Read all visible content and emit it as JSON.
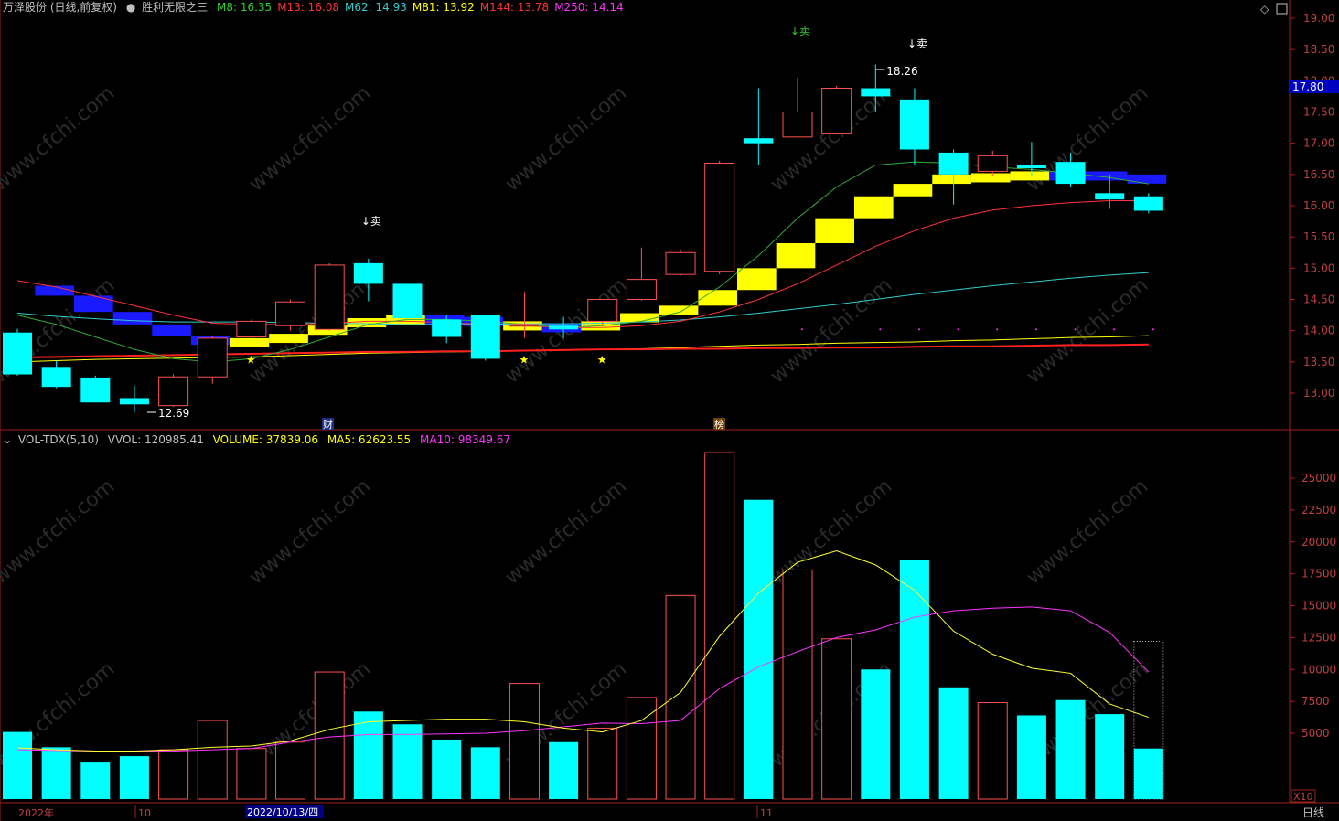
{
  "header": {
    "stock": "万泽股份 (日线,前复权)",
    "indicator": "胜利无限之三",
    "ma": [
      {
        "label": "M8: 16.35",
        "color": "#33cc33"
      },
      {
        "label": "M13: 16.08",
        "color": "#ff3333"
      },
      {
        "label": "M62: 14.93",
        "color": "#33cccc"
      },
      {
        "label": "M81: 13.92",
        "color": "#ffff00"
      },
      {
        "label": "M144: 13.78",
        "color": "#ff3333"
      },
      {
        "label": "M250: 14.14",
        "color": "#ff33ff"
      }
    ]
  },
  "vol_header": {
    "name": "VOL-TDX(5,10)",
    "vvol": "VVOL: 120985.41",
    "volume": "VOLUME: 37839.06",
    "ma5": "MA5: 62623.55",
    "ma10": "MA10: 98349.67"
  },
  "price_axis": {
    "labels": [
      "19.00",
      "18.50",
      "18.00",
      "17.50",
      "17.00",
      "16.50",
      "16.00",
      "15.50",
      "15.00",
      "14.50",
      "14.00",
      "13.50",
      "13.00"
    ],
    "current": "17.80"
  },
  "vol_axis": {
    "labels": [
      "25000",
      "22500",
      "20000",
      "17500",
      "15000",
      "12500",
      "10000",
      "7500",
      "5000"
    ],
    "unit": "X10"
  },
  "bottom_bar": {
    "year": "2022年",
    "month1": "10",
    "selected_date": "2022/10/13/四",
    "month2": "11",
    "period": "日线"
  },
  "annotations": {
    "sell": "↓卖",
    "sell_green": "↓卖",
    "high": "18.26",
    "low": "12.69",
    "cai": "财",
    "bang": "榜",
    "star": "★"
  },
  "watermark": "www.cfchi.com",
  "chart_data": {
    "type": "candlestick",
    "candles": [
      {
        "o": 13.97,
        "h": 14.03,
        "l": 13.28,
        "c": 13.3
      },
      {
        "o": 13.42,
        "h": 13.52,
        "l": 13.08,
        "c": 13.1
      },
      {
        "o": 13.25,
        "h": 13.28,
        "l": 12.85,
        "c": 12.85
      },
      {
        "o": 12.92,
        "h": 13.12,
        "l": 12.69,
        "c": 12.82
      },
      {
        "o": 12.8,
        "h": 13.3,
        "l": 12.78,
        "c": 13.26
      },
      {
        "o": 13.26,
        "h": 13.92,
        "l": 13.15,
        "c": 13.88
      },
      {
        "o": 13.9,
        "h": 14.18,
        "l": 13.88,
        "c": 14.15
      },
      {
        "o": 14.08,
        "h": 14.5,
        "l": 14.0,
        "c": 14.46
      },
      {
        "o": 14.02,
        "h": 15.08,
        "l": 14.0,
        "c": 15.05
      },
      {
        "o": 15.08,
        "h": 15.15,
        "l": 14.47,
        "c": 14.75
      },
      {
        "o": 14.75,
        "h": 14.75,
        "l": 14.18,
        "c": 14.2
      },
      {
        "o": 14.18,
        "h": 14.25,
        "l": 13.8,
        "c": 13.9
      },
      {
        "o": 14.25,
        "h": 14.25,
        "l": 13.52,
        "c": 13.55
      },
      {
        "o": 14.08,
        "h": 14.62,
        "l": 13.88,
        "c": 14.1
      },
      {
        "o": 14.08,
        "h": 14.22,
        "l": 13.88,
        "c": 14.02
      },
      {
        "o": 14.15,
        "h": 14.5,
        "l": 14.1,
        "c": 14.5
      },
      {
        "o": 14.5,
        "h": 15.33,
        "l": 14.48,
        "c": 14.82
      },
      {
        "o": 14.9,
        "h": 15.3,
        "l": 14.88,
        "c": 15.25
      },
      {
        "o": 14.95,
        "h": 16.72,
        "l": 14.9,
        "c": 16.68
      },
      {
        "o": 17.08,
        "h": 17.88,
        "l": 16.65,
        "c": 17.0
      },
      {
        "o": 17.1,
        "h": 18.05,
        "l": 17.1,
        "c": 17.5
      },
      {
        "o": 17.15,
        "h": 17.92,
        "l": 17.15,
        "c": 17.88
      },
      {
        "o": 17.88,
        "h": 18.26,
        "l": 17.5,
        "c": 17.75
      },
      {
        "o": 17.7,
        "h": 17.88,
        "l": 16.65,
        "c": 16.9
      },
      {
        "o": 16.85,
        "h": 16.9,
        "l": 16.02,
        "c": 16.5
      },
      {
        "o": 16.55,
        "h": 16.88,
        "l": 16.48,
        "c": 16.8
      },
      {
        "o": 16.65,
        "h": 17.02,
        "l": 16.48,
        "c": 16.6
      },
      {
        "o": 16.7,
        "h": 16.85,
        "l": 16.3,
        "c": 16.35
      },
      {
        "o": 16.2,
        "h": 16.5,
        "l": 15.95,
        "c": 16.1
      },
      {
        "o": 16.15,
        "h": 16.2,
        "l": 15.88,
        "c": 15.92
      }
    ],
    "volume": [
      5100,
      3900,
      2700,
      3200,
      3700,
      6000,
      3800,
      4300,
      9800,
      6700,
      5700,
      4500,
      3900,
      8900,
      4300,
      5400,
      7800,
      15800,
      27000,
      23300,
      17800,
      12400,
      10000,
      18600,
      8600,
      7400,
      6400,
      7600,
      6500,
      3800
    ],
    "vol_ma5": [
      3850,
      3700,
      3600,
      3600,
      3700,
      3900,
      4000,
      4400,
      5300,
      5900,
      6000,
      6100,
      6100,
      5900,
      5400,
      5100,
      6000,
      8200,
      12600,
      16000,
      18400,
      19300,
      18200,
      16200,
      13000,
      11200,
      10100,
      9700,
      7300,
      6250
    ],
    "vol_ma10": [
      3700,
      3650,
      3600,
      3580,
      3600,
      3700,
      3800,
      4300,
      4700,
      4900,
      4900,
      4950,
      5000,
      5200,
      5500,
      5800,
      5750,
      6000,
      8500,
      10200,
      11400,
      12500,
      13100,
      14100,
      14600,
      14800,
      14900,
      14600,
      12900,
      9800
    ],
    "ma8": [
      14.25,
      14.1,
      13.9,
      13.7,
      13.55,
      13.5,
      13.55,
      13.7,
      13.9,
      14.1,
      14.18,
      14.18,
      14.15,
      14.1,
      14.05,
      14.08,
      14.15,
      14.3,
      14.7,
      15.2,
      15.8,
      16.3,
      16.65,
      16.7,
      16.68,
      16.62,
      16.58,
      16.52,
      16.45,
      16.35
    ],
    "ma13": [
      14.8,
      14.7,
      14.55,
      14.4,
      14.25,
      14.12,
      14.1,
      14.1,
      14.12,
      14.15,
      14.15,
      14.13,
      14.1,
      14.08,
      14.05,
      14.05,
      14.08,
      14.15,
      14.3,
      14.5,
      14.75,
      15.05,
      15.35,
      15.6,
      15.8,
      15.93,
      16.0,
      16.05,
      16.08,
      16.08
    ],
    "ma62": [
      14.28,
      14.23,
      14.19,
      14.16,
      14.14,
      14.14,
      14.14,
      14.13,
      14.12,
      14.11,
      14.1,
      14.1,
      14.1,
      14.11,
      14.11,
      14.12,
      14.14,
      14.17,
      14.22,
      14.28,
      14.35,
      14.42,
      14.5,
      14.58,
      14.65,
      14.72,
      14.78,
      14.84,
      14.89,
      14.93
    ],
    "ma81": [
      13.5,
      13.52,
      13.54,
      13.55,
      13.56,
      13.57,
      13.58,
      13.6,
      13.62,
      13.64,
      13.65,
      13.66,
      13.67,
      13.68,
      13.69,
      13.7,
      13.71,
      13.73,
      13.75,
      13.77,
      13.78,
      13.8,
      13.81,
      13.82,
      13.84,
      13.85,
      13.87,
      13.89,
      13.9,
      13.92
    ],
    "ma144": [
      13.57,
      13.58,
      13.59,
      13.6,
      13.61,
      13.62,
      13.63,
      13.64,
      13.65,
      13.66,
      13.66,
      13.67,
      13.67,
      13.68,
      13.69,
      13.7,
      13.7,
      13.71,
      13.71,
      13.72,
      13.72,
      13.73,
      13.73,
      13.74,
      13.75,
      13.75,
      13.76,
      13.77,
      13.77,
      13.78
    ],
    "ribbon": [
      {
        "v": 14.72,
        "c": "blue"
      },
      {
        "v": 14.56,
        "c": "blue"
      },
      {
        "v": 14.3,
        "c": "blue"
      },
      {
        "v": 14.1,
        "c": "blue"
      },
      {
        "v": 13.92,
        "c": "blue"
      },
      {
        "v": 13.88,
        "c": "blue"
      },
      {
        "v": 13.82,
        "c": "yellow"
      },
      {
        "v": 13.95,
        "c": "yellow"
      },
      {
        "v": 14.08,
        "c": "yellow"
      },
      {
        "v": 14.2,
        "c": "yellow"
      },
      {
        "v": 14.25,
        "c": "yellow"
      },
      {
        "v": 14.22,
        "c": "blue"
      },
      {
        "v": 14.15,
        "c": "blue"
      },
      {
        "v": 14.12,
        "c": "yellow"
      },
      {
        "v": 14.08,
        "c": "blue"
      },
      {
        "v": 14.15,
        "c": "yellow"
      },
      {
        "v": 14.28,
        "c": "yellow"
      },
      {
        "v": 14.4,
        "c": "yellow"
      },
      {
        "v": 14.65,
        "c": "yellow"
      },
      {
        "v": 15.0,
        "c": "yellow"
      },
      {
        "v": 15.4,
        "c": "yellow"
      },
      {
        "v": 15.8,
        "c": "yellow"
      },
      {
        "v": 16.15,
        "c": "yellow"
      },
      {
        "v": 16.35,
        "c": "yellow"
      },
      {
        "v": 16.5,
        "c": "yellow"
      },
      {
        "v": 16.52,
        "c": "yellow"
      },
      {
        "v": 16.55,
        "c": "yellow"
      },
      {
        "v": 16.55,
        "c": "blue"
      },
      {
        "v": 16.5,
        "c": "blue"
      },
      {
        "v": 16.43,
        "c": "blue"
      }
    ],
    "stars": [
      6,
      13,
      15
    ],
    "sell_signals": [
      9,
      23
    ],
    "green_sell_signal": 20,
    "price_range": [
      12.4,
      19.2
    ],
    "vol_range": [
      0,
      28000
    ]
  }
}
